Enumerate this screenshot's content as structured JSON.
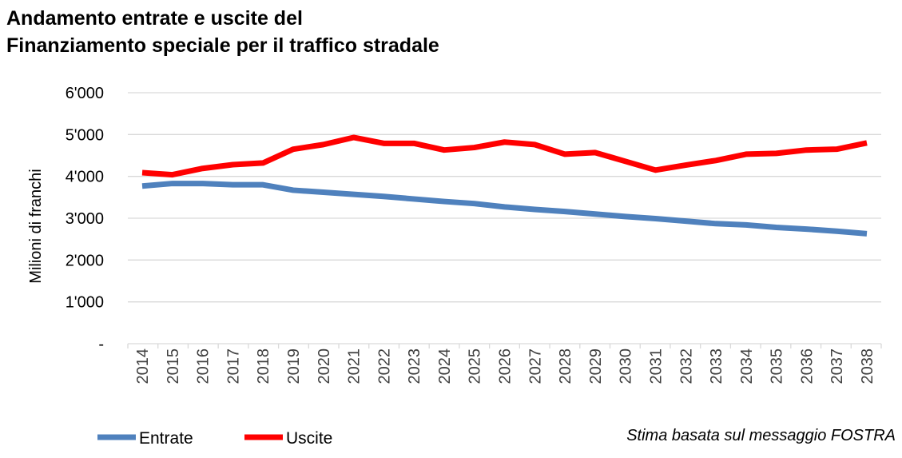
{
  "chart_data": {
    "type": "line",
    "title": "Andamento entrate e uscite del Finanziamento speciale per il traffico stradale",
    "title_lines": [
      "Andamento entrate e uscite del",
      "Finanziamento speciale per il traffico stradale"
    ],
    "ylabel": "Milioni di franchi",
    "xlabel": "",
    "ylim": [
      0,
      6000
    ],
    "yticks": [
      0,
      1000,
      2000,
      3000,
      4000,
      5000,
      6000
    ],
    "ytick_labels": [
      "-",
      "1'000",
      "2'000",
      "3'000",
      "4'000",
      "5'000",
      "6'000"
    ],
    "grid": true,
    "legend_position": "bottom-left",
    "x": [
      "2014",
      "2015",
      "2016",
      "2017",
      "2018",
      "2019",
      "2020",
      "2021",
      "2022",
      "2023",
      "2024",
      "2025",
      "2026",
      "2027",
      "2028",
      "2029",
      "2030",
      "2031",
      "2032",
      "2033",
      "2034",
      "2035",
      "2036",
      "2037",
      "2038"
    ],
    "series": [
      {
        "name": "Entrate",
        "color": "#4F81BD",
        "values": [
          3770,
          3830,
          3830,
          3800,
          3800,
          3670,
          3620,
          3570,
          3520,
          3460,
          3400,
          3350,
          3270,
          3210,
          3160,
          3100,
          3040,
          2990,
          2930,
          2870,
          2840,
          2780,
          2740,
          2690,
          2630
        ]
      },
      {
        "name": "Uscite",
        "color": "#FF0000",
        "values": [
          4090,
          4040,
          4190,
          4280,
          4320,
          4650,
          4760,
          4930,
          4790,
          4790,
          4630,
          4690,
          4820,
          4760,
          4530,
          4570,
          4360,
          4150,
          4270,
          4380,
          4530,
          4550,
          4630,
          4650,
          4800
        ]
      }
    ],
    "annotation": "Stima basata sul messaggio FOSTRA"
  }
}
